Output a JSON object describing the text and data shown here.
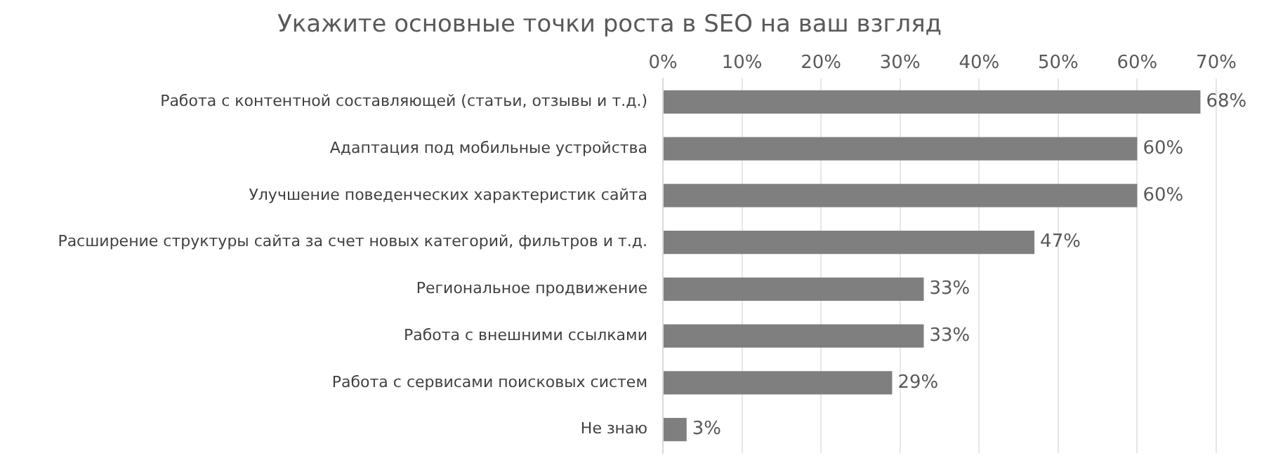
{
  "chart_data": {
    "type": "bar",
    "orientation": "horizontal",
    "title": "Укажите основные точки роста в SEO на ваш взгляд",
    "categories": [
      "Работа с контентной составляющей (статьи, отзывы и т.д.)",
      "Адаптация под мобильные устройства",
      "Улучшение поведенческих характеристик сайта",
      "Расширение структуры сайта за счет новых категорий, фильтров и т.д.",
      "Региональное продвижение",
      "Работа с внешними ссылками",
      "Работа с сервисами поисковых систем",
      "Не знаю"
    ],
    "values": [
      68,
      60,
      60,
      47,
      33,
      33,
      29,
      3
    ],
    "value_labels": [
      "68%",
      "60%",
      "60%",
      "47%",
      "33%",
      "33%",
      "29%",
      "3%"
    ],
    "color": "#7f7f7f",
    "xlim": [
      0,
      70
    ],
    "xticks": [
      {
        "value": 0,
        "label": "0%"
      },
      {
        "value": 10,
        "label": "10%"
      },
      {
        "value": 20,
        "label": "20%"
      },
      {
        "value": 30,
        "label": "30%"
      },
      {
        "value": 40,
        "label": "40%"
      },
      {
        "value": 50,
        "label": "50%"
      },
      {
        "value": 60,
        "label": "60%"
      },
      {
        "value": 70,
        "label": "70%"
      }
    ],
    "grid": "x",
    "legend": false
  }
}
